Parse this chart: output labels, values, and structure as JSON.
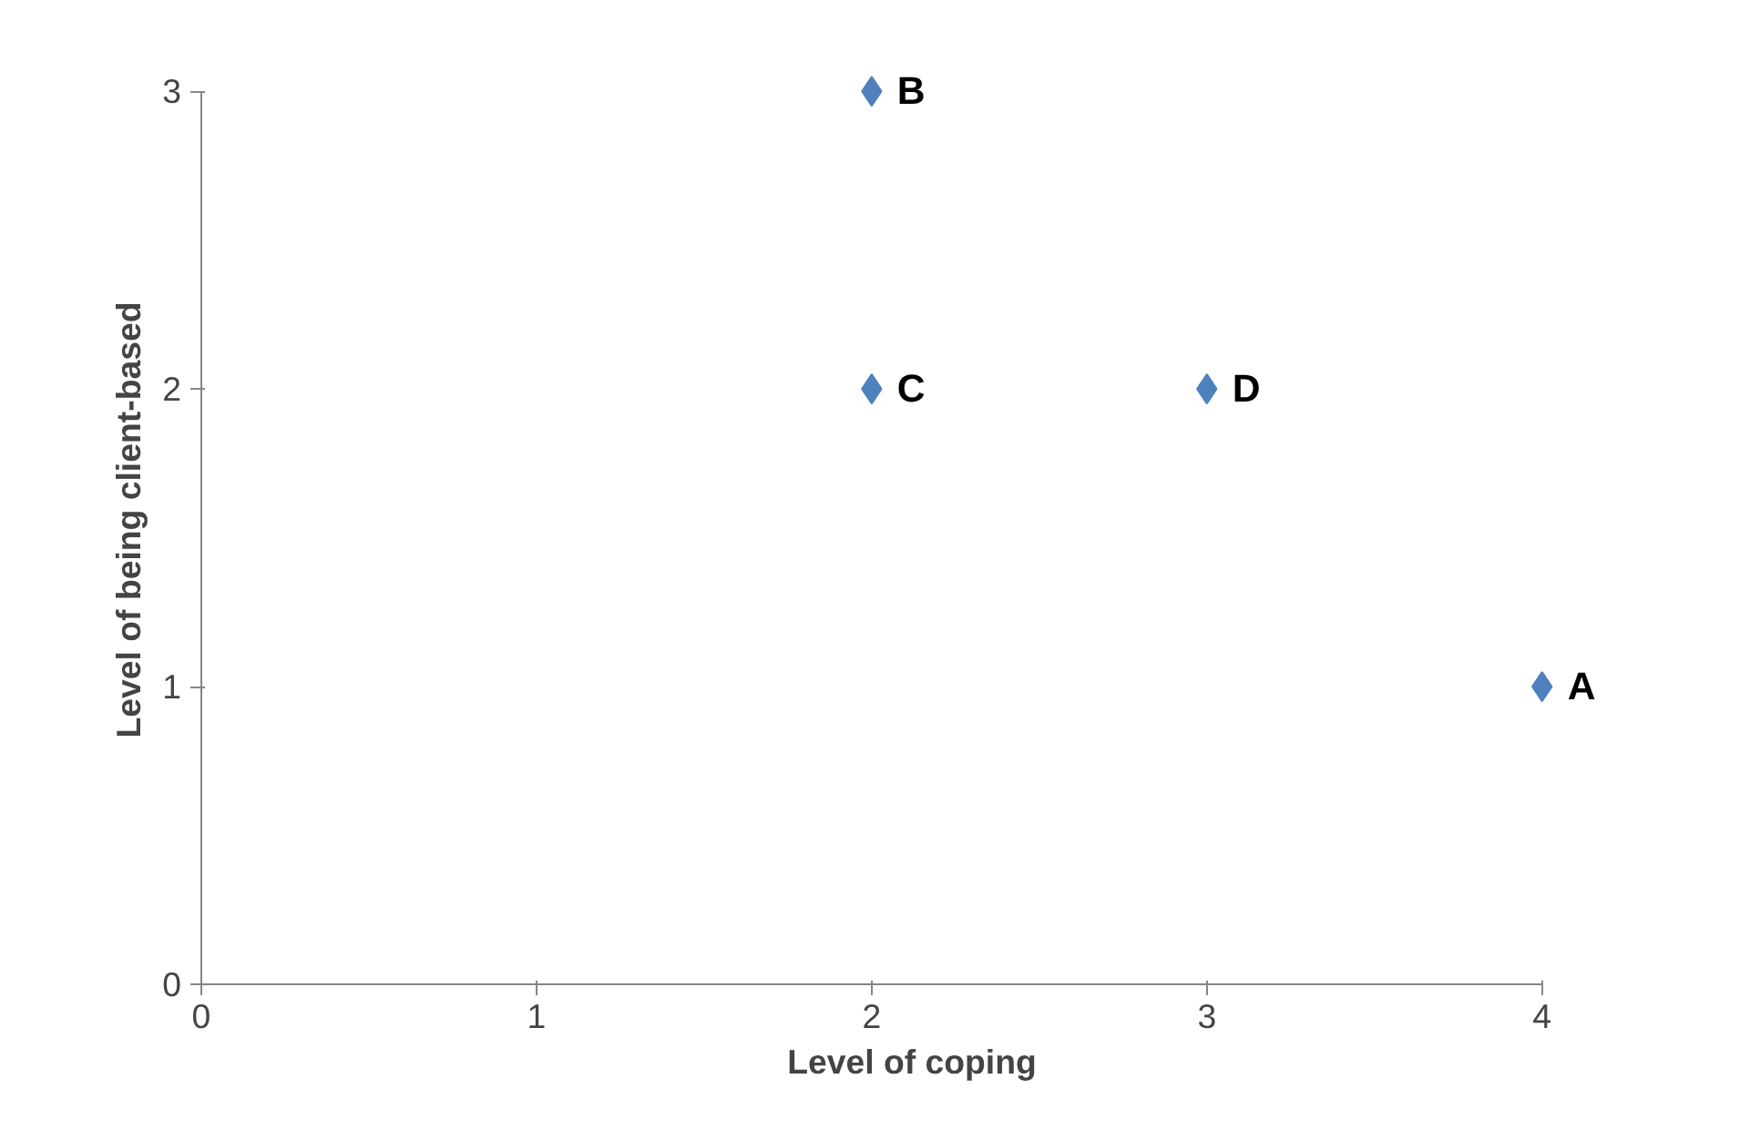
{
  "chart_data": {
    "type": "scatter",
    "xlabel": "Level of coping",
    "ylabel": "Level of being client-based",
    "x": [
      4,
      2,
      2,
      3
    ],
    "values": [
      1,
      3,
      2,
      2
    ],
    "color": "#4f81bd",
    "marker": "diamond",
    "xlim": [
      0,
      4
    ],
    "ylim": [
      0,
      3
    ],
    "xticks": [
      0,
      1,
      2,
      3,
      4
    ],
    "yticks": [
      0,
      1,
      2,
      3
    ],
    "grid": false,
    "annotations": [
      {
        "text": "A",
        "x": 4,
        "y": 1
      },
      {
        "text": "B",
        "x": 2,
        "y": 3
      },
      {
        "text": "C",
        "x": 2,
        "y": 2
      },
      {
        "text": "D",
        "x": 3,
        "y": 2
      }
    ]
  }
}
